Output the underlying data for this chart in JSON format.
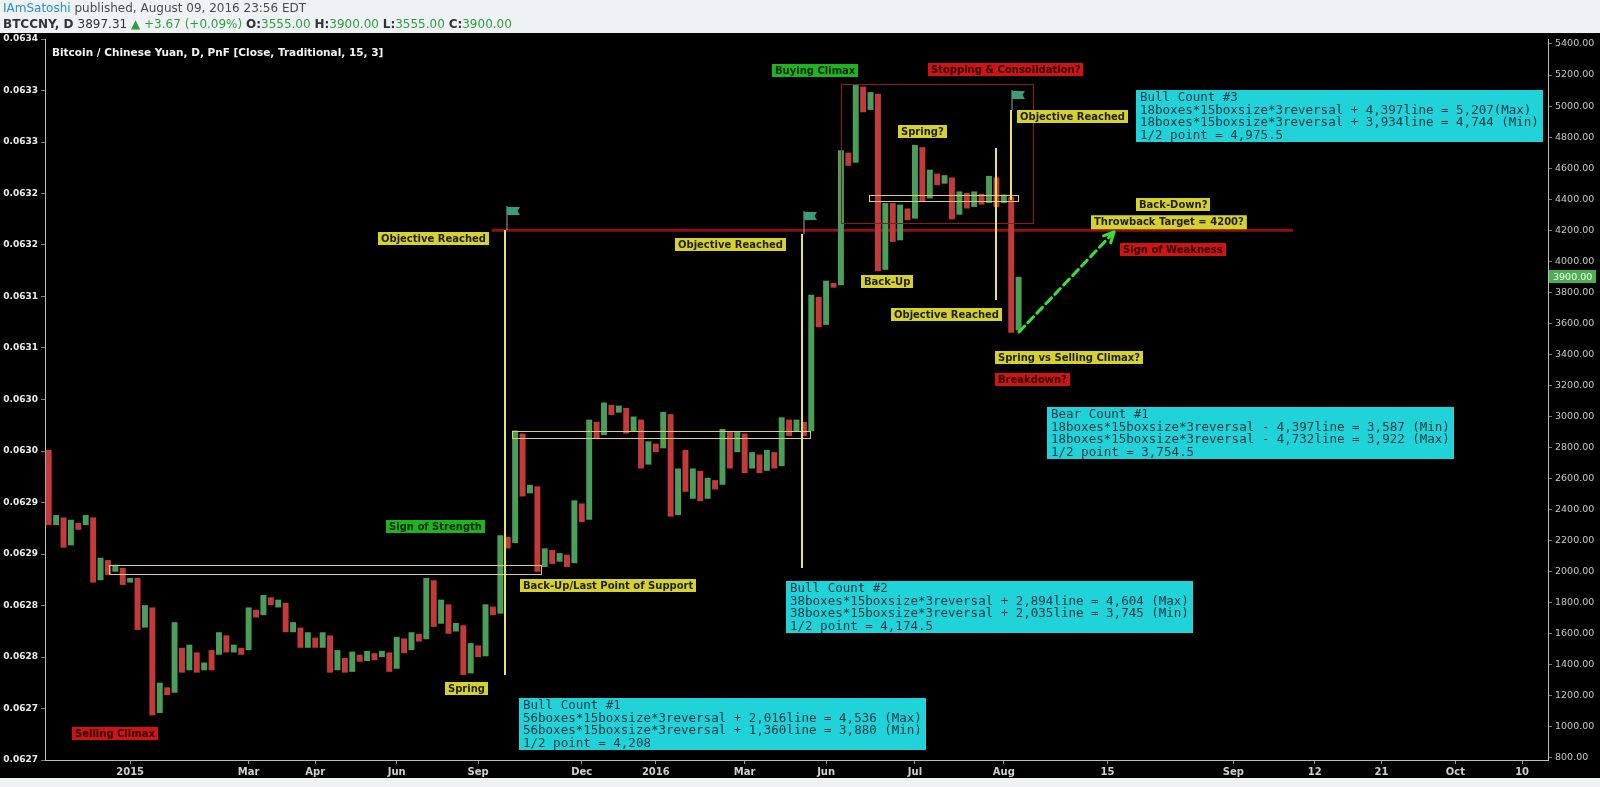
{
  "chart_data": {
    "type": "bar",
    "title": "Bitcoin / Chinese Yuan, D, PnF [Close, Traditional, 15, 3]",
    "subtitle": "BTCCNY, D 3897.31 ▲ +3.67 (+0.09%) O:3555.00 H:3900.00 L:3555.00 C:3900.00",
    "categories": [
      null,
      null,
      null,
      null,
      null,
      null,
      null,
      null,
      null,
      null,
      null,
      "2015",
      null,
      null,
      null,
      null,
      null,
      null,
      null,
      null,
      null,
      null,
      null,
      null,
      null,
      null,
      null,
      "Mar",
      null,
      null,
      null,
      null,
      null,
      null,
      null,
      null,
      "Apr",
      null,
      null,
      null,
      null,
      null,
      null,
      null,
      null,
      null,
      null,
      "Jun",
      null,
      null,
      null,
      null,
      null,
      null,
      null,
      null,
      null,
      null,
      "Sep",
      null,
      null,
      null,
      null,
      null,
      null,
      null,
      null,
      null,
      null,
      null,
      null,
      null,
      "Dec",
      null,
      null,
      null,
      null,
      null,
      null,
      null,
      null,
      null,
      "2016",
      null,
      null,
      null,
      null,
      null,
      null,
      null,
      null,
      null,
      null,
      null,
      "Mar",
      null,
      null,
      null,
      null,
      null,
      null,
      null,
      null,
      null,
      null,
      "Jun",
      null,
      null,
      null,
      null,
      null,
      null,
      null,
      null,
      null,
      null,
      null,
      "Jul",
      null,
      null,
      null,
      null,
      null,
      null,
      null,
      null,
      null,
      null,
      null,
      "Aug",
      null,
      null,
      null,
      null,
      null,
      null,
      null,
      null,
      null,
      null,
      null,
      null,
      null,
      "15",
      null,
      null,
      null,
      null,
      null,
      null,
      null,
      null,
      null,
      null,
      null,
      null,
      null,
      null,
      null,
      null,
      "Sep",
      null,
      null,
      null,
      null,
      null,
      null,
      null,
      null,
      null,
      null,
      "12",
      null,
      null,
      null,
      null,
      null,
      null,
      null,
      null,
      "21",
      null,
      null,
      null,
      null,
      null,
      null,
      null,
      null,
      null,
      "Oct",
      null,
      null,
      null,
      null,
      null,
      null,
      null,
      null,
      "10",
      null,
      null,
      null
    ],
    "values": [
      485,
      65,
      195,
      165,
      45,
      65,
      420,
      145,
      95,
      45,
      110,
      30,
      335,
      145,
      695,
      195,
      50,
      455,
      160,
      165,
      130,
      50,
      130,
      145,
      110,
      50,
      45,
      275,
      50,
      130,
      50,
      50,
      190,
      65,
      130,
      100,
      65,
      100,
      240,
      130,
      95,
      130,
      45,
      65,
      45,
      40,
      125,
      205,
      95,
      115,
      50,
      395,
      300,
      155,
      190,
      55,
      320,
      195,
      75,
      335,
      55,
      505,
      75,
      725,
      405,
      55,
      550,
      120,
      90,
      55,
      80,
      405,
      120,
      645,
      105,
      210,
      65,
      45,
      165,
      100,
      315,
      150,
      55,
      235,
      660,
      300,
      270,
      195,
      195,
      135,
      60,
      360,
      240,
      135,
      255,
      105,
      120,
      135,
      105,
      315,
      105,
      75,
      90,
      880,
      195,
      285,
      30,
      870,
      85,
      500,
      165,
      115,
      1145,
      430,
      250,
      230,
      75,
      475,
      350,
      185,
      75,
      55,
      270,
      150,
      100,
      100,
      70,
      175,
      190,
      55,
      875,
      345,
      null,
      null,
      null,
      null,
      null,
      null,
      null,
      null,
      null,
      null,
      null,
      null,
      null,
      null,
      null,
      null,
      null,
      null,
      null,
      null,
      null,
      null,
      null,
      null,
      null,
      null,
      null,
      null,
      null,
      null,
      null,
      null,
      null,
      null,
      null,
      null,
      null,
      null,
      null,
      null,
      null,
      null,
      null,
      null,
      null,
      null,
      null,
      null,
      null,
      null,
      null,
      null,
      null,
      null,
      null,
      null,
      null,
      null,
      null,
      null,
      null,
      null,
      null,
      null,
      null,
      null,
      null,
      null,
      null,
      null,
      null
    ],
    "base": [
      2300,
      2300,
      2155,
      2170,
      2270,
      2300,
      1930,
      1945,
      1980,
      2000,
      1915,
      1930,
      1625,
      1640,
      1075,
      1090,
      1205,
      1220,
      1350,
      1365,
      1350,
      1365,
      1365,
      1465,
      1480,
      1480,
      1465,
      1495,
      1705,
      1720,
      1785,
      1770,
      1610,
      1610,
      1510,
      1510,
      1510,
      1510,
      1350,
      1365,
      1350,
      1355,
      1420,
      1425,
      1430,
      1450,
      1355,
      1375,
      1475,
      1495,
      1550,
      1565,
      1645,
      1665,
      1600,
      1615,
      1335,
      1345,
      1450,
      1455,
      1720,
      1730,
      2150,
      2185,
      2485,
      2505,
      2000,
      2030,
      2050,
      2065,
      2030,
      2055,
      2320,
      2335,
      2860,
      2880,
      3010,
      3025,
      2890,
      2900,
      2665,
      2690,
      2770,
      2795,
      2355,
      2365,
      2515,
      2470,
      2455,
      2470,
      2530,
      2560,
      2665,
      2770,
      2635,
      2665,
      2635,
      2650,
      2665,
      2680,
      2875,
      2905,
      2875,
      2905,
      3575,
      3590,
      3830,
      3845,
      4615,
      4635,
      4960,
      4975,
      3935,
      3945,
      4125,
      4135,
      4265,
      4275,
      4385,
      4405,
      4490,
      4500,
      4270,
      4300,
      4340,
      4350,
      4365,
      4375,
      4350,
      4375,
      3540,
      3555,
      null,
      null,
      null,
      null,
      null,
      null,
      null,
      null,
      null,
      null,
      null,
      null,
      null,
      null,
      null,
      null,
      null,
      null,
      null,
      null,
      null,
      null,
      null,
      null,
      null,
      null,
      null,
      null,
      null,
      null,
      null,
      null,
      null,
      null,
      null,
      null,
      null,
      null,
      null,
      null,
      null,
      null,
      null,
      null,
      null,
      null,
      null,
      null,
      null,
      null,
      null,
      null,
      null,
      null,
      null,
      null,
      null,
      null,
      null,
      null,
      null,
      null,
      null,
      null,
      null,
      null,
      null,
      null,
      null,
      null,
      null
    ],
    "colors": [
      "#c23a3a",
      "#4a9e5a",
      "#c23a3a",
      "#4a9e5a",
      "#c23a3a",
      "#4a9e5a",
      "#c23a3a",
      "#4a9e5a",
      "#c23a3a",
      "#4a9e5a",
      "#c23a3a",
      "#4a9e5a",
      "#c23a3a",
      "#4a9e5a",
      "#c23a3a",
      "#4a9e5a",
      "#c23a3a",
      "#4a9e5a",
      "#c23a3a",
      "#4a9e5a",
      "#c23a3a",
      "#4a9e5a",
      "#c23a3a",
      "#4a9e5a",
      "#c23a3a",
      "#4a9e5a",
      "#c23a3a",
      "#4a9e5a",
      "#c23a3a",
      "#4a9e5a",
      "#c23a3a",
      "#4a9e5a",
      "#c23a3a",
      "#4a9e5a",
      "#c23a3a",
      "#4a9e5a",
      "#c23a3a",
      "#4a9e5a",
      "#c23a3a",
      "#4a9e5a",
      "#c23a3a",
      "#4a9e5a",
      "#c23a3a",
      "#4a9e5a",
      "#c23a3a",
      "#4a9e5a",
      "#c23a3a",
      "#4a9e5a",
      "#c23a3a",
      "#4a9e5a",
      "#c23a3a",
      "#4a9e5a",
      "#c23a3a",
      "#4a9e5a",
      "#c23a3a",
      "#4a9e5a",
      "#c23a3a",
      "#4a9e5a",
      "#c23a3a",
      "#4a9e5a",
      "#c23a3a",
      "#4a9e5a",
      "#c23a3a",
      "#4a9e5a",
      "#c23a3a",
      "#4a9e5a",
      "#c23a3a",
      "#4a9e5a",
      "#c23a3a",
      "#4a9e5a",
      "#c23a3a",
      "#4a9e5a",
      "#c23a3a",
      "#4a9e5a",
      "#c23a3a",
      "#4a9e5a",
      "#c23a3a",
      "#4a9e5a",
      "#c23a3a",
      "#4a9e5a",
      "#c23a3a",
      "#4a9e5a",
      "#c23a3a",
      "#4a9e5a",
      "#c23a3a",
      "#4a9e5a",
      "#c23a3a",
      "#4a9e5a",
      "#c23a3a",
      "#4a9e5a",
      "#c23a3a",
      "#4a9e5a",
      "#c23a3a",
      "#4a9e5a",
      "#c23a3a",
      "#4a9e5a",
      "#c23a3a",
      "#4a9e5a",
      "#c23a3a",
      "#4a9e5a",
      "#c23a3a",
      "#4a9e5a",
      "#c23a3a",
      "#4a9e5a",
      "#c23a3a",
      "#4a9e5a",
      "#c23a3a",
      "#4a9e5a",
      "#c23a3a",
      "#4a9e5a",
      "#c23a3a",
      "#4a9e5a",
      "#c23a3a",
      "#4a9e5a",
      "#c23a3a",
      "#4a9e5a",
      "#c23a3a",
      "#4a9e5a",
      "#c23a3a",
      "#4a9e5a",
      "#c23a3a",
      "#4a9e5a",
      "#c23a3a",
      "#4a9e5a",
      "#c23a3a",
      "#4a9e5a",
      "#c23a3a",
      "#4a9e5a",
      "#c23a3a",
      "#4a9e5a",
      "#c23a3a",
      "#4a9e5a",
      null,
      null,
      null,
      null,
      null,
      null,
      null,
      null,
      null,
      null,
      null,
      null,
      null,
      null,
      null,
      null,
      null,
      null,
      null,
      null,
      null,
      null,
      null,
      null,
      null,
      null,
      null,
      null,
      null,
      null,
      null,
      null,
      null,
      null,
      null,
      null,
      null,
      null,
      null,
      null,
      null,
      null,
      null,
      null,
      null,
      null,
      null,
      null,
      null,
      null,
      null,
      null,
      null,
      null,
      null,
      null,
      null,
      null,
      null,
      null,
      null,
      null,
      null,
      null,
      null,
      null,
      null,
      null,
      null,
      null,
      null
    ],
    "ylim": [
      787,
      5432
    ],
    "yticks": [
      {
        "value": 800,
        "label": "800.00"
      },
      {
        "value": 1000,
        "label": "1000.00"
      },
      {
        "value": 1200,
        "label": "1200.00"
      },
      {
        "value": 1400,
        "label": "1400.00"
      },
      {
        "value": 1600,
        "label": "1600.00"
      },
      {
        "value": 1800,
        "label": "1800.00"
      },
      {
        "value": 2000,
        "label": "2000.00"
      },
      {
        "value": 2200,
        "label": "2200.00"
      },
      {
        "value": 2400,
        "label": "2400.00"
      },
      {
        "value": 2600,
        "label": "2600.00"
      },
      {
        "value": 2800,
        "label": "2800.00"
      },
      {
        "value": 3000,
        "label": "3000.00"
      },
      {
        "value": 3200,
        "label": "3200.00"
      },
      {
        "value": 3400,
        "label": "3400.00"
      },
      {
        "value": 3600,
        "label": "3600.00"
      },
      {
        "value": 3800,
        "label": "3800.00"
      },
      {
        "value": 4000,
        "label": "4000.00"
      },
      {
        "value": 4200,
        "label": "4200.00"
      },
      {
        "value": 4400,
        "label": "4400.00"
      },
      {
        "value": 4600,
        "label": "4600.00"
      },
      {
        "value": 4800,
        "label": "4800.00"
      },
      {
        "value": 5000,
        "label": "5000.00"
      },
      {
        "value": 5200,
        "label": "5200.00"
      },
      {
        "value": 5400,
        "label": "5400.00"
      }
    ],
    "y2lim": [
      0.0627,
      0.0634
    ],
    "y2ticks": [
      {
        "value": 0.0627,
        "label": "0.0627"
      },
      {
        "value": 0.06275,
        "label": "0.0627"
      },
      {
        "value": 0.0628,
        "label": "0.0628"
      },
      {
        "value": 0.06285,
        "label": "0.0628"
      },
      {
        "value": 0.0629,
        "label": "0.0629"
      },
      {
        "value": 0.06295,
        "label": "0.0629"
      },
      {
        "value": 0.063,
        "label": "0.0630"
      },
      {
        "value": 0.06305,
        "label": "0.0630"
      },
      {
        "value": 0.0631,
        "label": "0.0631"
      },
      {
        "value": 0.06315,
        "label": "0.0631"
      },
      {
        "value": 0.0632,
        "label": "0.0632"
      },
      {
        "value": 0.06325,
        "label": "0.0632"
      },
      {
        "value": 0.0633,
        "label": "0.0633"
      },
      {
        "value": 0.06335,
        "label": "0.0633"
      },
      {
        "value": 0.0634,
        "label": "0.0634"
      }
    ],
    "ref_lines": [
      {
        "axis": "y",
        "value": 4200,
        "label": "Throwback Target = 4200?",
        "color": "#8b1212"
      }
    ],
    "annotations": [
      "IAmSatoshi published, August 09, 2016 23:56 EDT",
      "3900.00",
      "Selling Climax",
      "Spring",
      "Sign of Strength",
      "Back-Up/Last Point of Support",
      "Objective Reached",
      "Bull Count #1\n56boxes*15boxsize*3reversal + 2,016line = 4,536 (Max)\n56boxes*15boxsize*3reversal + 1,360line = 3,880 (Min)\n1/2 point = 4,208",
      "Objective Reached",
      "Bull Count #2\n38boxes*15boxsize*3reversal + 2,894line = 4,604 (Max)\n38boxes*15boxsize*3reversal + 2,035line = 3,745 (Min)\n1/2 point = 4,174.5",
      "Buying Climax",
      "Stopping & Consolidation?",
      "Spring?",
      "Back-Up",
      "Objective Reached",
      "Objective Reached",
      "Sign of Weakness",
      "Spring vs Selling Climax?",
      "Breakdown?",
      "Back-Down?",
      "Bull Count #3\n18boxes*15boxsize*3reversal + 4,397line = 5,207(Max)\n18boxes*15boxsize*3reversal + 3,934line = 4,744 (Min)\n1/2 point = 4,975.5",
      "Bear Count #1\n18boxes*15boxsize*3reversal - 4,397line = 3,587 (Min)\n18boxes*15boxsize*3reversal - 4,732line = 3,922 (Max)\n1/2 point = 3,754.5"
    ]
  }
}
